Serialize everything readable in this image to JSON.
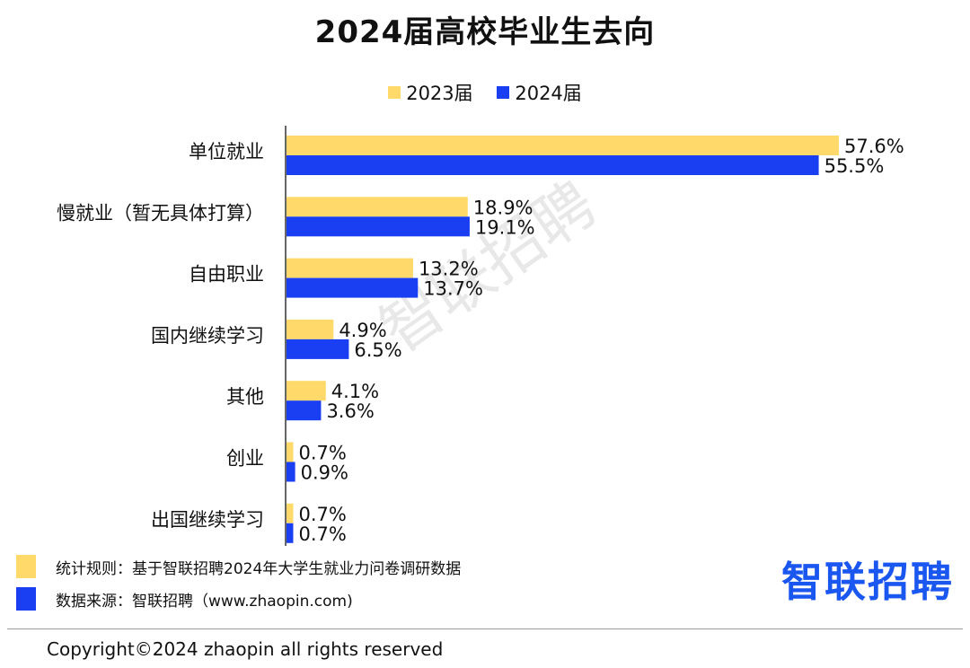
{
  "title": "2024届高校毕业生去向",
  "colors": {
    "y2023": "#FFDA6B",
    "y2024": "#1A3FF2",
    "axis": "#333333",
    "brand": "#1A56F0"
  },
  "legend": [
    {
      "label": "2023届",
      "color": "#FFDA6B"
    },
    {
      "label": "2024届",
      "color": "#1A3FF2"
    }
  ],
  "chart_data": {
    "type": "bar",
    "orientation": "horizontal",
    "title": "2024届高校毕业生去向",
    "categories": [
      "单位就业",
      "慢就业（暂无具体打算）",
      "自由职业",
      "国内继续学习",
      "其他",
      "创业",
      "出国继续学习"
    ],
    "series": [
      {
        "name": "2023届",
        "values": [
          57.6,
          18.9,
          13.2,
          4.9,
          4.1,
          0.7,
          0.7
        ],
        "labels": [
          "57.6%",
          "18.9%",
          "13.2%",
          "4.9%",
          "4.1%",
          "0.7%",
          "0.7%"
        ]
      },
      {
        "name": "2024届",
        "values": [
          55.5,
          19.1,
          13.7,
          6.5,
          3.6,
          0.9,
          0.7
        ],
        "labels": [
          "55.5%",
          "19.1%",
          "13.7%",
          "6.5%",
          "3.6%",
          "0.9%",
          "0.7%"
        ]
      }
    ],
    "xlabel": "",
    "ylabel": "",
    "xlim": [
      0,
      60
    ],
    "grid": false,
    "legend_position": "top"
  },
  "notes": {
    "rule": "统计规则：基于智联招聘2024年大学生就业力问卷调研数据",
    "source": "数据来源：智联招聘（www.zhaopin.com)"
  },
  "brand": "智联招聘",
  "watermark": "智联招聘",
  "copyright": "Copyright©2024 zhaopin all rights reserved"
}
